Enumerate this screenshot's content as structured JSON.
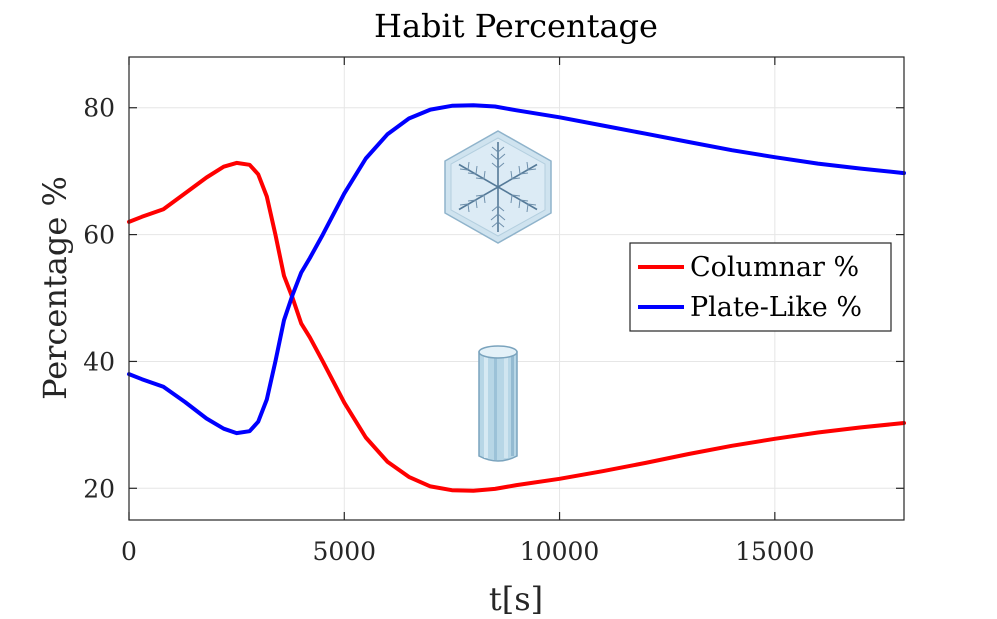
{
  "chart_data": {
    "type": "line",
    "title": "Habit Percentage",
    "xlabel": "t[s]",
    "ylabel": "Percentage %",
    "xlim": [
      0,
      18000
    ],
    "ylim": [
      15,
      88
    ],
    "xticks": [
      0,
      5000,
      10000,
      15000
    ],
    "yticks": [
      20,
      40,
      60,
      80
    ],
    "grid": true,
    "legend_position": "right",
    "series": [
      {
        "name": "Columnar %",
        "color": "#ff0000",
        "x": [
          0,
          300,
          800,
          1300,
          1800,
          2200,
          2500,
          2800,
          3000,
          3200,
          3400,
          3600,
          3800,
          4000,
          4200,
          4500,
          5000,
          5500,
          6000,
          6500,
          7000,
          7500,
          8000,
          8500,
          9000,
          10000,
          11000,
          12000,
          13000,
          14000,
          15000,
          16000,
          17000,
          18000
        ],
        "y": [
          62,
          62.8,
          64,
          66.5,
          69,
          70.7,
          71.3,
          71,
          69.5,
          66,
          60,
          53.5,
          50,
          46,
          43.8,
          40,
          33.5,
          28,
          24.2,
          21.8,
          20.3,
          19.7,
          19.6,
          19.9,
          20.5,
          21.5,
          22.7,
          24,
          25.4,
          26.7,
          27.8,
          28.8,
          29.6,
          30.3
        ]
      },
      {
        "name": "Plate-Like %",
        "color": "#0000ff",
        "x": [
          0,
          300,
          800,
          1300,
          1800,
          2200,
          2500,
          2800,
          3000,
          3200,
          3400,
          3600,
          3800,
          4000,
          4200,
          4500,
          5000,
          5500,
          6000,
          6500,
          7000,
          7500,
          8000,
          8500,
          9000,
          10000,
          11000,
          12000,
          13000,
          14000,
          15000,
          16000,
          17000,
          18000
        ],
        "y": [
          38,
          37.2,
          36,
          33.6,
          31,
          29.4,
          28.7,
          29,
          30.5,
          34,
          40,
          46.5,
          50.5,
          54,
          56.3,
          60,
          66.5,
          72,
          75.8,
          78.3,
          79.7,
          80.3,
          80.4,
          80.2,
          79.6,
          78.5,
          77.2,
          75.9,
          74.6,
          73.3,
          72.2,
          71.2,
          70.4,
          69.7
        ]
      }
    ],
    "annotations": [
      "plate-crystal-illustration",
      "column-crystal-illustration"
    ]
  }
}
